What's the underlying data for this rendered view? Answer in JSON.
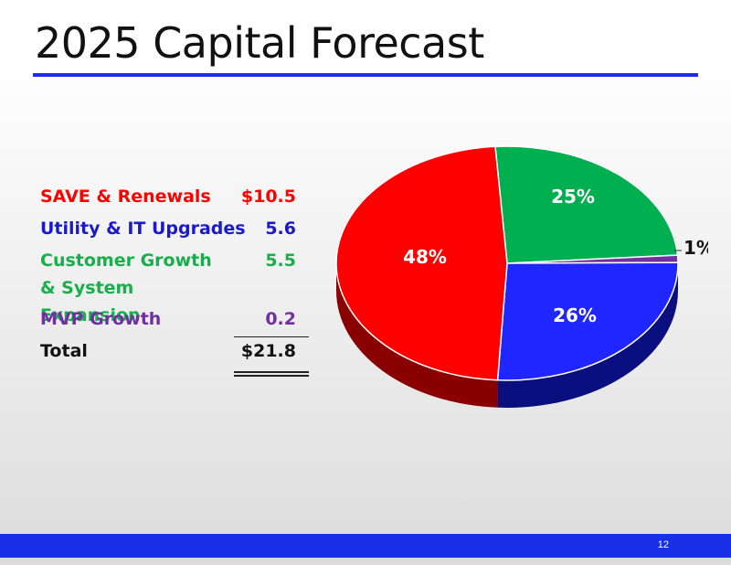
{
  "title": "2025 Capital Forecast",
  "page_number": "12",
  "colors": {
    "accent": "#1a2fe8",
    "red": "#ff0000",
    "blue": "#1a1aff",
    "green": "#16b04a",
    "purple": "#7030a0"
  },
  "table": {
    "rows": [
      {
        "label": "SAVE & Renewals",
        "value": "$10.5",
        "color": "#ff0000"
      },
      {
        "label": "Utility & IT Upgrades",
        "value": "5.6",
        "color": "#1a1acc"
      },
      {
        "label": "Customer Growth & System Expansion",
        "value": "5.5",
        "color": "#16b04a"
      },
      {
        "label": "MVP Growth",
        "value": "0.2",
        "color": "#7030a0"
      }
    ],
    "total_label": "Total",
    "total_value": "$21.8"
  },
  "chart_data": {
    "type": "pie",
    "title": "",
    "slices": [
      {
        "name": "SAVE & Renewals",
        "value": 48,
        "label": "48%",
        "color": "#ff0000",
        "side": "#8a0000"
      },
      {
        "name": "Customer Growth & System Expansion",
        "value": 25,
        "label": "25%",
        "color": "#00b050",
        "side": "#006a30"
      },
      {
        "name": "MVP Growth",
        "value": 1,
        "label": "1%",
        "color": "#7030a0",
        "side": "#3c1a58"
      },
      {
        "name": "Utility & IT Upgrades",
        "value": 26,
        "label": "26%",
        "color": "#1f26ff",
        "side": "#0a0f80"
      }
    ]
  }
}
